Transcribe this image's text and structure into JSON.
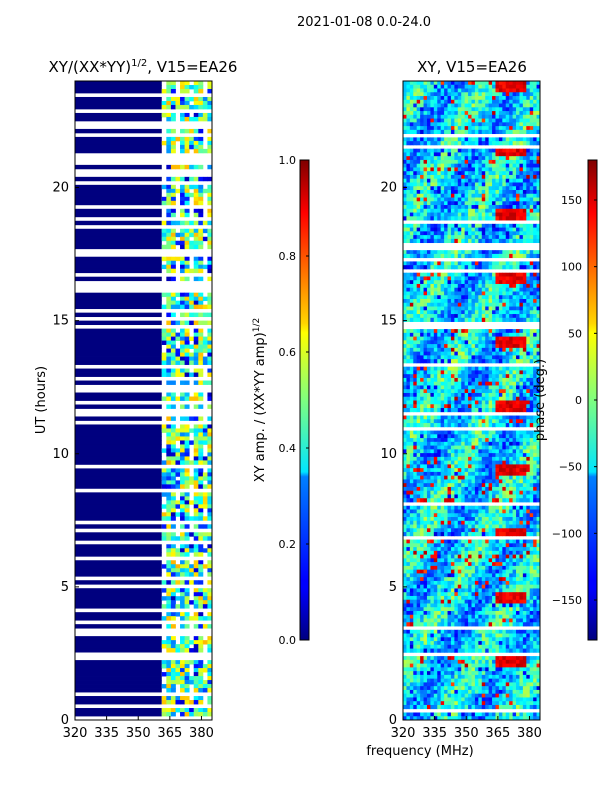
{
  "suptitle": "2021-01-08 0.0-24.0",
  "colors": {
    "masked": "#00007f",
    "axis": "#000000",
    "background": "#ffffff"
  },
  "chart_data": [
    {
      "type": "heatmap",
      "id": "amplitude-ratio",
      "title": "XY/(XX*YY)",
      "title_exponent": "1/2",
      "title_suffix": ", V15=EA26",
      "xlabel": "",
      "ylabel": "UT (hours)",
      "xlim": [
        320,
        385
      ],
      "ylim": [
        0,
        24
      ],
      "xticks": [
        320,
        335,
        350,
        365,
        380
      ],
      "yticks": [
        0,
        5,
        10,
        15,
        20
      ],
      "masked_below_mhz": 362,
      "colorbar": {
        "label": "XY amp. / (XX*YY amp)",
        "label_exponent": "1/2",
        "range": [
          0.0,
          1.0
        ],
        "ticks": [
          0.0,
          0.2,
          0.4,
          0.6,
          0.8,
          1.0
        ],
        "tick_labels": [
          "0.0",
          "0.2",
          "0.4",
          "0.6",
          "0.8",
          "1.0"
        ]
      }
    },
    {
      "type": "heatmap",
      "id": "phase",
      "title": "XY, V15=EA26",
      "xlabel": "frequency (MHz)",
      "ylabel": "",
      "xlim": [
        320,
        385
      ],
      "ylim": [
        0,
        24
      ],
      "xticks": [
        320,
        335,
        350,
        365,
        380
      ],
      "yticks": [
        0,
        5,
        10,
        15,
        20
      ],
      "colorbar": {
        "label": "phase (deg.)",
        "range": [
          -180,
          180
        ],
        "ticks": [
          -150,
          -100,
          -50,
          0,
          50,
          100,
          150
        ],
        "tick_labels": [
          "−150",
          "−100",
          "−50",
          "0",
          "50",
          "100",
          "150"
        ]
      }
    }
  ]
}
